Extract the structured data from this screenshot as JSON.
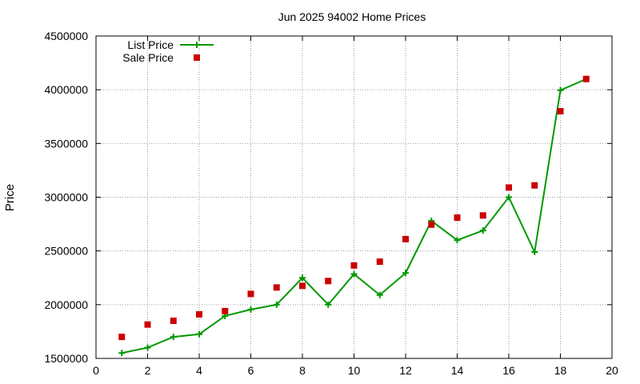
{
  "chart_data": {
    "type": "line",
    "title": "Jun 2025 94002 Home Prices",
    "xlabel": "",
    "ylabel": "Price",
    "xlim": [
      0,
      20
    ],
    "ylim": [
      1500000,
      4500000
    ],
    "x_ticks": [
      0,
      2,
      4,
      6,
      8,
      10,
      12,
      14,
      16,
      18,
      20
    ],
    "y_ticks": [
      1500000,
      2000000,
      2500000,
      3000000,
      3500000,
      4000000,
      4500000
    ],
    "grid": true,
    "legend_position": "top-left",
    "series": [
      {
        "name": "List Price",
        "type": "line",
        "marker": "plus",
        "color": "#009900",
        "x": [
          1,
          2,
          3,
          4,
          5,
          6,
          7,
          8,
          9,
          10,
          11,
          12,
          13,
          14,
          15,
          16,
          17,
          18,
          19
        ],
        "y": [
          1550000,
          1600000,
          1700000,
          1725000,
          1895000,
          1955000,
          2000000,
          2250000,
          2000000,
          2285000,
          2090000,
          2295000,
          2780000,
          2600000,
          2690000,
          3000000,
          2490000,
          3995000,
          4100000
        ]
      },
      {
        "name": "Sale Price",
        "type": "scatter",
        "marker": "square",
        "color": "#cc0000",
        "x": [
          1,
          2,
          3,
          4,
          5,
          6,
          7,
          8,
          9,
          10,
          11,
          12,
          13,
          14,
          15,
          16,
          17,
          18,
          19
        ],
        "y": [
          1700000,
          1815000,
          1850000,
          1910000,
          1940000,
          2100000,
          2160000,
          2175000,
          2220000,
          2365000,
          2400000,
          2610000,
          2745000,
          2810000,
          2830000,
          3090000,
          3110000,
          3800000,
          4100000
        ]
      }
    ]
  }
}
